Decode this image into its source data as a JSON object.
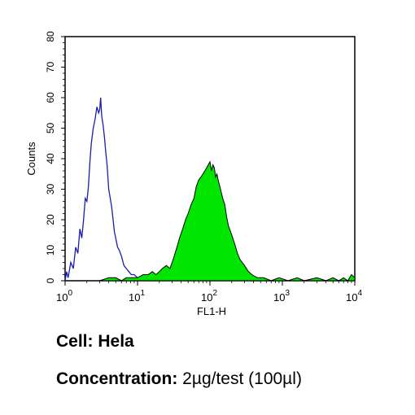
{
  "chart_data": {
    "type": "area",
    "xlabel": "FL1-H",
    "ylabel": "Counts",
    "x_scale": "log",
    "xlim": [
      1,
      10000
    ],
    "ylim": [
      0,
      80
    ],
    "x_ticks": [
      {
        "value": 1,
        "base": "10",
        "exp": "0"
      },
      {
        "value": 10,
        "base": "10",
        "exp": "1"
      },
      {
        "value": 100,
        "base": "10",
        "exp": "2"
      },
      {
        "value": 1000,
        "base": "10",
        "exp": "3"
      },
      {
        "value": 10000,
        "base": "10",
        "exp": "4"
      }
    ],
    "y_ticks": [
      0,
      10,
      20,
      30,
      40,
      50,
      60,
      70,
      80
    ],
    "grid": false,
    "legend": "none",
    "series": [
      {
        "style": "outline",
        "color": "#1c1cb0",
        "x": [
          1,
          1.05,
          1.1,
          1.2,
          1.3,
          1.4,
          1.5,
          1.6,
          1.7,
          1.8,
          1.9,
          2.0,
          2.1,
          2.2,
          2.3,
          2.45,
          2.6,
          2.75,
          2.9,
          3.0,
          3.1,
          3.2,
          3.35,
          3.5,
          3.65,
          3.8,
          4.0,
          4.2,
          4.4,
          4.6,
          4.8,
          5.0,
          5.3,
          5.6,
          6.0,
          6.5,
          7.0,
          7.6,
          8.2,
          9.0,
          10,
          11,
          12
        ],
        "y": [
          0,
          3,
          1,
          6,
          4,
          11,
          9,
          17,
          14,
          20,
          27,
          26,
          31,
          39,
          45,
          50,
          53,
          57,
          55,
          56,
          60,
          54,
          51,
          47,
          42,
          38,
          30,
          27,
          24,
          20,
          16,
          14,
          11,
          10,
          8,
          5,
          4,
          3,
          2,
          2,
          1,
          1,
          0
        ]
      },
      {
        "style": "filled",
        "color": "#00e600",
        "x": [
          3,
          4,
          5,
          6,
          7,
          8,
          9,
          10,
          12,
          14,
          16,
          18,
          20,
          22,
          25,
          28,
          30,
          32,
          35,
          38,
          42,
          46,
          50,
          55,
          60,
          65,
          70,
          75,
          80,
          85,
          90,
          95,
          100,
          105,
          110,
          115,
          120,
          125,
          130,
          140,
          150,
          160,
          170,
          180,
          200,
          220,
          240,
          260,
          300,
          340,
          380,
          450,
          550,
          700,
          900,
          1200,
          1600,
          2000,
          3000,
          4000,
          5000,
          6000,
          7000,
          8000,
          9000,
          10000
        ],
        "y": [
          0,
          1,
          1,
          0,
          1,
          1,
          1,
          1,
          2,
          2,
          3,
          2,
          3,
          4,
          5,
          4,
          6,
          8,
          11,
          14,
          17,
          20,
          22,
          25,
          27,
          31,
          33,
          34,
          35,
          36,
          37,
          38,
          39,
          36,
          38,
          37,
          34,
          35,
          33,
          30,
          27,
          25,
          21,
          18,
          15,
          12,
          9,
          7,
          5,
          3,
          2,
          1,
          1,
          0,
          1,
          0,
          1,
          0,
          1,
          0,
          1,
          0,
          1,
          0,
          2,
          1
        ]
      }
    ]
  },
  "captions": {
    "cell_label": "Cell:",
    "cell_value": "Hela",
    "conc_label": "Concentration:",
    "conc_value": "2µg/test (100µl)"
  }
}
